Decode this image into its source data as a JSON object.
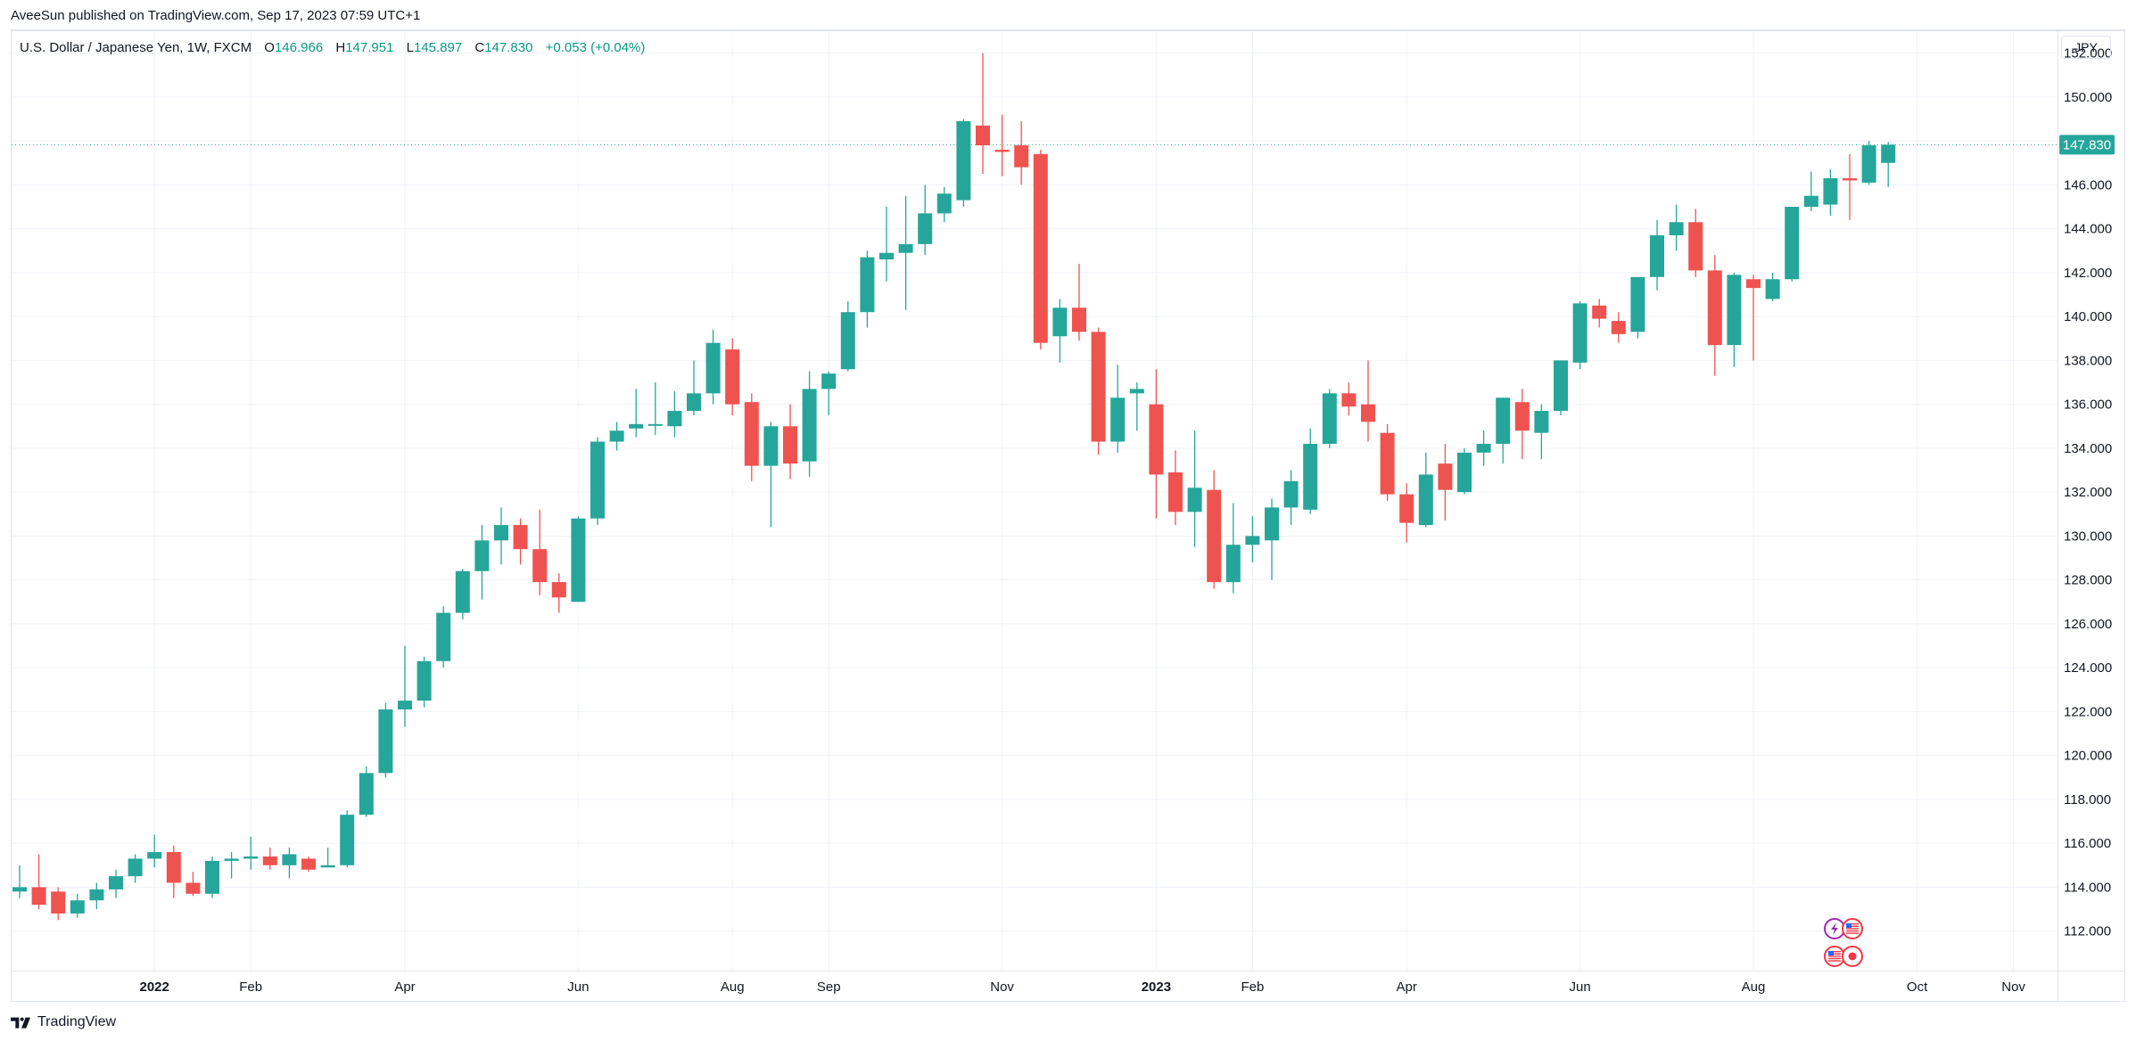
{
  "header": {
    "published": "AveeSun published on TradingView.com, Sep 17, 2023 07:59 UTC+1"
  },
  "legend": {
    "symbol": "U.S. Dollar / Japanese Yen, 1W, FXCM",
    "o_label": "O",
    "o_value": "146.966",
    "h_label": "H",
    "h_value": "147.951",
    "l_label": "L",
    "l_value": "145.897",
    "c_label": "C",
    "c_value": "147.830",
    "change": "+0.053 (+0.04%)"
  },
  "currency": "JPY",
  "footer": {
    "brand": "TradingView"
  },
  "colors": {
    "up": "#26a69a",
    "down": "#ef5350",
    "grid": "#f0f3fa",
    "axis": "#e0e3eb"
  },
  "chart_data": {
    "type": "candlestick",
    "ylim": [
      110.2,
      153.0
    ],
    "y_ticks": [
      "152.000",
      "150.000",
      "148.000",
      "146.000",
      "144.000",
      "142.000",
      "140.000",
      "138.000",
      "136.000",
      "134.000",
      "132.000",
      "130.000",
      "128.000",
      "126.000",
      "124.000",
      "122.000",
      "120.000",
      "118.000",
      "116.000",
      "114.000",
      "112.000"
    ],
    "x_ticks": [
      {
        "label": "2022",
        "index": 7,
        "bold": true
      },
      {
        "label": "Feb",
        "index": 12,
        "bold": false
      },
      {
        "label": "Apr",
        "index": 20,
        "bold": false
      },
      {
        "label": "Jun",
        "index": 29,
        "bold": false
      },
      {
        "label": "Aug",
        "index": 37,
        "bold": false
      },
      {
        "label": "Sep",
        "index": 42,
        "bold": false
      },
      {
        "label": "Nov",
        "index": 51,
        "bold": false
      },
      {
        "label": "2023",
        "index": 59,
        "bold": true
      },
      {
        "label": "Feb",
        "index": 64,
        "bold": false
      },
      {
        "label": "Apr",
        "index": 72,
        "bold": false
      },
      {
        "label": "Jun",
        "index": 81,
        "bold": false
      },
      {
        "label": "Aug",
        "index": 90,
        "bold": false
      },
      {
        "label": "Oct",
        "index": 98.5,
        "bold": false
      },
      {
        "label": "Nov",
        "index": 103.5,
        "bold": false
      }
    ],
    "last_price": "147.830",
    "last_value": 147.83,
    "candles": [
      [
        113.8,
        115.0,
        113.5,
        114.0
      ],
      [
        114.0,
        115.5,
        113.0,
        113.2
      ],
      [
        113.8,
        114.0,
        112.5,
        112.8
      ],
      [
        112.8,
        113.7,
        112.6,
        113.4
      ],
      [
        113.4,
        114.2,
        113.0,
        113.9
      ],
      [
        113.9,
        114.8,
        113.5,
        114.5
      ],
      [
        114.5,
        115.5,
        114.2,
        115.3
      ],
      [
        115.3,
        116.4,
        114.9,
        115.6
      ],
      [
        115.6,
        115.9,
        113.5,
        114.2
      ],
      [
        114.2,
        114.7,
        113.6,
        113.7
      ],
      [
        113.7,
        115.4,
        113.5,
        115.2
      ],
      [
        115.2,
        115.6,
        114.4,
        115.3
      ],
      [
        115.3,
        116.3,
        114.8,
        115.4
      ],
      [
        115.4,
        115.8,
        114.8,
        115.0
      ],
      [
        115.0,
        115.8,
        114.4,
        115.5
      ],
      [
        115.3,
        115.4,
        114.7,
        114.8
      ],
      [
        114.9,
        115.8,
        114.9,
        115.0
      ],
      [
        115.0,
        117.5,
        114.9,
        117.3
      ],
      [
        117.3,
        119.5,
        117.2,
        119.2
      ],
      [
        119.2,
        122.4,
        119.0,
        122.1
      ],
      [
        122.1,
        125.0,
        121.3,
        122.5
      ],
      [
        122.5,
        124.5,
        122.2,
        124.3
      ],
      [
        124.3,
        126.8,
        124.0,
        126.5
      ],
      [
        126.5,
        128.5,
        126.2,
        128.4
      ],
      [
        128.4,
        130.5,
        127.1,
        129.8
      ],
      [
        129.8,
        131.3,
        128.7,
        130.5
      ],
      [
        130.5,
        130.8,
        128.7,
        129.4
      ],
      [
        129.4,
        131.2,
        127.3,
        127.9
      ],
      [
        127.9,
        128.3,
        126.5,
        127.2
      ],
      [
        127.0,
        130.9,
        127.0,
        130.8
      ],
      [
        130.8,
        134.5,
        130.5,
        134.3
      ],
      [
        134.3,
        135.2,
        133.9,
        134.8
      ],
      [
        134.9,
        136.7,
        134.5,
        135.1
      ],
      [
        135.1,
        137.0,
        134.6,
        135.1
      ],
      [
        135.0,
        136.6,
        134.5,
        135.7
      ],
      [
        135.7,
        138.0,
        135.5,
        136.5
      ],
      [
        136.5,
        139.4,
        136.0,
        138.8
      ],
      [
        138.5,
        139.0,
        135.5,
        136.0
      ],
      [
        136.1,
        136.5,
        132.5,
        133.2
      ],
      [
        133.2,
        135.2,
        130.4,
        135.0
      ],
      [
        135.0,
        136.0,
        132.6,
        133.3
      ],
      [
        133.4,
        137.5,
        132.7,
        136.7
      ],
      [
        136.7,
        137.5,
        135.5,
        137.4
      ],
      [
        137.6,
        140.7,
        137.5,
        140.2
      ],
      [
        140.2,
        143.0,
        139.5,
        142.7
      ],
      [
        142.6,
        145.0,
        141.6,
        142.9
      ],
      [
        142.9,
        145.5,
        140.3,
        143.3
      ],
      [
        143.3,
        146.0,
        142.8,
        144.7
      ],
      [
        144.7,
        145.9,
        144.3,
        145.6
      ],
      [
        145.3,
        149.0,
        145.0,
        148.9
      ],
      [
        148.7,
        152.0,
        146.5,
        147.8
      ],
      [
        147.6,
        149.2,
        146.4,
        147.5
      ],
      [
        147.8,
        148.9,
        146.0,
        146.8
      ],
      [
        147.4,
        147.6,
        138.5,
        138.8
      ],
      [
        139.1,
        140.8,
        137.9,
        140.4
      ],
      [
        140.4,
        142.4,
        138.9,
        139.3
      ],
      [
        139.3,
        139.5,
        133.7,
        134.3
      ],
      [
        134.3,
        137.8,
        133.8,
        136.3
      ],
      [
        136.5,
        137.0,
        134.8,
        136.7
      ],
      [
        136.0,
        137.6,
        130.8,
        132.8
      ],
      [
        132.9,
        133.9,
        130.5,
        131.1
      ],
      [
        131.1,
        134.8,
        129.5,
        132.2
      ],
      [
        132.1,
        133.0,
        127.6,
        127.9
      ],
      [
        127.9,
        131.5,
        127.4,
        129.6
      ],
      [
        129.6,
        130.9,
        128.8,
        130.0
      ],
      [
        129.8,
        131.7,
        128.0,
        131.3
      ],
      [
        131.3,
        133.0,
        130.5,
        132.5
      ],
      [
        131.2,
        134.9,
        131.0,
        134.2
      ],
      [
        134.2,
        136.7,
        134.0,
        136.5
      ],
      [
        136.5,
        137.0,
        135.5,
        135.9
      ],
      [
        136.0,
        138.0,
        134.3,
        135.2
      ],
      [
        134.7,
        135.1,
        131.6,
        131.9
      ],
      [
        131.9,
        132.4,
        129.7,
        130.6
      ],
      [
        130.5,
        133.8,
        130.4,
        132.8
      ],
      [
        133.3,
        134.2,
        130.7,
        132.1
      ],
      [
        132.0,
        134.0,
        131.9,
        133.8
      ],
      [
        133.8,
        134.8,
        133.2,
        134.2
      ],
      [
        134.2,
        136.3,
        133.3,
        136.3
      ],
      [
        136.1,
        136.7,
        133.5,
        134.8
      ],
      [
        134.7,
        136.0,
        133.5,
        135.7
      ],
      [
        135.7,
        138.0,
        135.5,
        138.0
      ],
      [
        137.9,
        140.7,
        137.6,
        140.6
      ],
      [
        140.5,
        140.8,
        139.5,
        139.9
      ],
      [
        139.8,
        140.2,
        138.8,
        139.2
      ],
      [
        139.3,
        141.6,
        139.0,
        141.8
      ],
      [
        141.8,
        144.4,
        141.2,
        143.7
      ],
      [
        143.7,
        145.1,
        143.0,
        144.3
      ],
      [
        144.3,
        144.9,
        141.8,
        142.1
      ],
      [
        142.1,
        142.8,
        137.3,
        138.7
      ],
      [
        138.7,
        142.0,
        137.7,
        141.9
      ],
      [
        141.7,
        141.9,
        138.0,
        141.3
      ],
      [
        140.8,
        142.0,
        140.7,
        141.7
      ],
      [
        141.7,
        145.0,
        141.6,
        145.0
      ],
      [
        145.0,
        146.6,
        144.8,
        145.5
      ],
      [
        145.1,
        146.7,
        144.6,
        146.3
      ],
      [
        146.3,
        147.4,
        144.4,
        146.2
      ],
      [
        146.1,
        148.0,
        146.0,
        147.8
      ],
      [
        147.0,
        147.95,
        145.9,
        147.83
      ]
    ]
  }
}
